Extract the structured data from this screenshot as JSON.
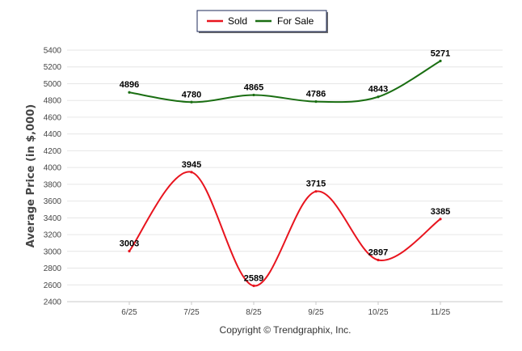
{
  "chart_data": {
    "type": "line",
    "title": "",
    "xlabel": "",
    "ylabel": "Average Price (in $,000)",
    "ylim": [
      2400,
      5400
    ],
    "yticks": [
      2400,
      2600,
      2800,
      3000,
      3200,
      3400,
      3600,
      3800,
      4000,
      4200,
      4400,
      4600,
      4800,
      5000,
      5200,
      5400
    ],
    "categories": [
      "6/25",
      "7/25",
      "8/25",
      "9/25",
      "10/25",
      "11/25"
    ],
    "series": [
      {
        "name": "Sold",
        "color": "#e8141e",
        "values": [
          3003,
          3945,
          2589,
          3715,
          2897,
          3385
        ]
      },
      {
        "name": "For Sale",
        "color": "#1a6e12",
        "values": [
          4896,
          4780,
          4865,
          4786,
          4843,
          5271
        ]
      }
    ],
    "legend": "top-center",
    "grid": true
  },
  "credit": "Copyright © Trendgraphix, Inc."
}
